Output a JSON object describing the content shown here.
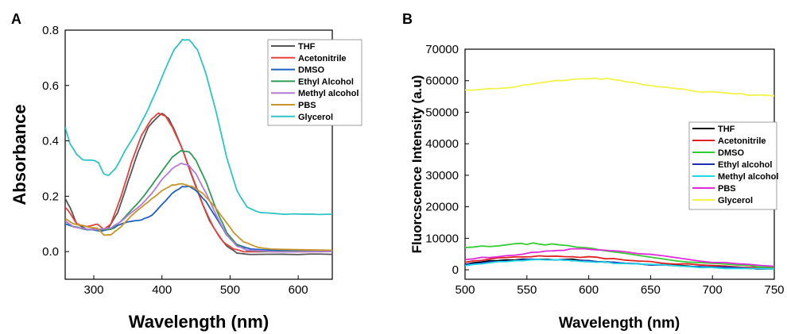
{
  "chart_data": [
    {
      "panel": "A",
      "type": "line",
      "xlabel": "Wavelength (nm)",
      "ylabel": "Absorbance",
      "xlim": [
        258,
        650
      ],
      "ylim": [
        -0.1,
        0.8
      ],
      "xticks": [
        300,
        400,
        500,
        600
      ],
      "yticks": [
        0.0,
        0.2,
        0.4,
        0.6,
        0.8
      ],
      "legend_position": "top-right",
      "series": [
        {
          "name": "THF",
          "color": "#555555",
          "points": [
            [
              258,
              0.19
            ],
            [
              265,
              0.16
            ],
            [
              275,
              0.1
            ],
            [
              290,
              0.08
            ],
            [
              305,
              0.08
            ],
            [
              320,
              0.08
            ],
            [
              335,
              0.14
            ],
            [
              350,
              0.25
            ],
            [
              365,
              0.36
            ],
            [
              380,
              0.45
            ],
            [
              395,
              0.49
            ],
            [
              400,
              0.5
            ],
            [
              410,
              0.48
            ],
            [
              420,
              0.43
            ],
            [
              430,
              0.37
            ],
            [
              440,
              0.3
            ],
            [
              455,
              0.2
            ],
            [
              470,
              0.11
            ],
            [
              485,
              0.05
            ],
            [
              495,
              0.02
            ],
            [
              510,
              -0.005
            ],
            [
              530,
              -0.01
            ],
            [
              600,
              -0.01
            ],
            [
              650,
              -0.01
            ]
          ]
        },
        {
          "name": "Acetonitrile",
          "color": "#e8413b",
          "points": [
            [
              258,
              0.16
            ],
            [
              265,
              0.14
            ],
            [
              275,
              0.1
            ],
            [
              290,
              0.09
            ],
            [
              305,
              0.1
            ],
            [
              315,
              0.08
            ],
            [
              325,
              0.1
            ],
            [
              340,
              0.2
            ],
            [
              355,
              0.32
            ],
            [
              370,
              0.42
            ],
            [
              385,
              0.48
            ],
            [
              395,
              0.5
            ],
            [
              405,
              0.49
            ],
            [
              415,
              0.45
            ],
            [
              430,
              0.37
            ],
            [
              445,
              0.27
            ],
            [
              460,
              0.17
            ],
            [
              475,
              0.09
            ],
            [
              490,
              0.035
            ],
            [
              505,
              0.01
            ],
            [
              520,
              0.0
            ],
            [
              650,
              0.0
            ]
          ]
        },
        {
          "name": "DMSO",
          "color": "#1e5fc4",
          "points": [
            [
              258,
              0.1
            ],
            [
              270,
              0.09
            ],
            [
              290,
              0.08
            ],
            [
              310,
              0.075
            ],
            [
              325,
              0.08
            ],
            [
              340,
              0.1
            ],
            [
              355,
              0.11
            ],
            [
              370,
              0.115
            ],
            [
              385,
              0.13
            ],
            [
              400,
              0.17
            ],
            [
              415,
              0.21
            ],
            [
              430,
              0.235
            ],
            [
              440,
              0.235
            ],
            [
              450,
              0.22
            ],
            [
              465,
              0.18
            ],
            [
              480,
              0.12
            ],
            [
              495,
              0.06
            ],
            [
              510,
              0.025
            ],
            [
              530,
              0.01
            ],
            [
              560,
              0.005
            ],
            [
              650,
              0.005
            ]
          ]
        },
        {
          "name": "Ethyl Alcohol",
          "color": "#2e9c54",
          "points": [
            [
              258,
              0.11
            ],
            [
              270,
              0.09
            ],
            [
              290,
              0.08
            ],
            [
              310,
              0.08
            ],
            [
              325,
              0.08
            ],
            [
              340,
              0.11
            ],
            [
              355,
              0.15
            ],
            [
              370,
              0.19
            ],
            [
              385,
              0.24
            ],
            [
              400,
              0.29
            ],
            [
              415,
              0.34
            ],
            [
              428,
              0.365
            ],
            [
              440,
              0.36
            ],
            [
              450,
              0.33
            ],
            [
              465,
              0.25
            ],
            [
              480,
              0.15
            ],
            [
              495,
              0.07
            ],
            [
              510,
              0.025
            ],
            [
              525,
              0.005
            ],
            [
              560,
              0.0
            ],
            [
              650,
              0.0
            ]
          ]
        },
        {
          "name": "Methyl alcohol",
          "color": "#b37ad8",
          "points": [
            [
              258,
              0.11
            ],
            [
              270,
              0.09
            ],
            [
              290,
              0.08
            ],
            [
              310,
              0.08
            ],
            [
              325,
              0.085
            ],
            [
              340,
              0.11
            ],
            [
              355,
              0.14
            ],
            [
              370,
              0.17
            ],
            [
              385,
              0.21
            ],
            [
              400,
              0.26
            ],
            [
              415,
              0.3
            ],
            [
              428,
              0.32
            ],
            [
              440,
              0.31
            ],
            [
              450,
              0.28
            ],
            [
              465,
              0.21
            ],
            [
              480,
              0.13
            ],
            [
              495,
              0.06
            ],
            [
              510,
              0.02
            ],
            [
              525,
              0.005
            ],
            [
              560,
              0.0
            ],
            [
              650,
              0.0
            ]
          ]
        },
        {
          "name": "PBS",
          "color": "#c8962a",
          "points": [
            [
              258,
              0.12
            ],
            [
              270,
              0.1
            ],
            [
              290,
              0.09
            ],
            [
              305,
              0.085
            ],
            [
              315,
              0.06
            ],
            [
              325,
              0.06
            ],
            [
              340,
              0.09
            ],
            [
              355,
              0.13
            ],
            [
              370,
              0.16
            ],
            [
              385,
              0.19
            ],
            [
              400,
              0.22
            ],
            [
              415,
              0.24
            ],
            [
              430,
              0.245
            ],
            [
              445,
              0.235
            ],
            [
              460,
              0.21
            ],
            [
              475,
              0.17
            ],
            [
              490,
              0.12
            ],
            [
              505,
              0.07
            ],
            [
              520,
              0.035
            ],
            [
              540,
              0.015
            ],
            [
              570,
              0.008
            ],
            [
              650,
              0.005
            ]
          ]
        },
        {
          "name": "Glycerol",
          "color": "#2ec4c6",
          "points": [
            [
              258,
              0.45
            ],
            [
              265,
              0.39
            ],
            [
              275,
              0.35
            ],
            [
              285,
              0.33
            ],
            [
              300,
              0.33
            ],
            [
              307,
              0.32
            ],
            [
              315,
              0.28
            ],
            [
              322,
              0.275
            ],
            [
              332,
              0.3
            ],
            [
              345,
              0.36
            ],
            [
              360,
              0.42
            ],
            [
              375,
              0.49
            ],
            [
              390,
              0.57
            ],
            [
              405,
              0.66
            ],
            [
              418,
              0.73
            ],
            [
              430,
              0.765
            ],
            [
              440,
              0.765
            ],
            [
              452,
              0.73
            ],
            [
              465,
              0.64
            ],
            [
              480,
              0.5
            ],
            [
              495,
              0.34
            ],
            [
              510,
              0.22
            ],
            [
              525,
              0.16
            ],
            [
              545,
              0.14
            ],
            [
              580,
              0.135
            ],
            [
              620,
              0.135
            ],
            [
              650,
              0.135
            ]
          ]
        }
      ]
    },
    {
      "panel": "B",
      "type": "line",
      "xlabel": "Wavelength (nm)",
      "ylabel": "Fluorcscence Intensity (a.u)",
      "xlim": [
        500,
        750
      ],
      "ylim": [
        -3000,
        70000
      ],
      "xticks": [
        500,
        550,
        600,
        650,
        700,
        750
      ],
      "yticks": [
        0,
        10000,
        20000,
        30000,
        40000,
        50000,
        60000,
        70000
      ],
      "legend_position": "middle-right",
      "series": [
        {
          "name": "THF",
          "color": "#000000",
          "points": [
            [
              500,
              1800
            ],
            [
              520,
              2700
            ],
            [
              540,
              3300
            ],
            [
              560,
              3500
            ],
            [
              580,
              3300
            ],
            [
              600,
              2900
            ],
            [
              620,
              2300
            ],
            [
              650,
              1700
            ],
            [
              680,
              1100
            ],
            [
              710,
              700
            ],
            [
              750,
              400
            ]
          ]
        },
        {
          "name": "Acetonitrile",
          "color": "#e02020",
          "points": [
            [
              500,
              2400
            ],
            [
              520,
              3400
            ],
            [
              540,
              4100
            ],
            [
              560,
              4400
            ],
            [
              580,
              4300
            ],
            [
              600,
              4000
            ],
            [
              620,
              3400
            ],
            [
              650,
              2500
            ],
            [
              680,
              1700
            ],
            [
              710,
              1100
            ],
            [
              750,
              600
            ]
          ]
        },
        {
          "name": "DMSO",
          "color": "#33cc33",
          "points": [
            [
              500,
              7000
            ],
            [
              520,
              7500
            ],
            [
              540,
              8100
            ],
            [
              555,
              8300
            ],
            [
              570,
              8000
            ],
            [
              590,
              7300
            ],
            [
              610,
              6300
            ],
            [
              640,
              4600
            ],
            [
              670,
              3000
            ],
            [
              700,
              1900
            ],
            [
              730,
              1200
            ],
            [
              750,
              800
            ]
          ]
        },
        {
          "name": "Ethyl alcohol",
          "color": "#1a2fb0",
          "points": [
            [
              500,
              1600
            ],
            [
              520,
              2400
            ],
            [
              540,
              3000
            ],
            [
              560,
              3300
            ],
            [
              580,
              3100
            ],
            [
              600,
              2800
            ],
            [
              620,
              2300
            ],
            [
              650,
              1700
            ],
            [
              680,
              1100
            ],
            [
              710,
              700
            ],
            [
              750,
              300
            ]
          ]
        },
        {
          "name": "Methyl alcohol",
          "color": "#22d8e8",
          "points": [
            [
              500,
              1500
            ],
            [
              520,
              2200
            ],
            [
              540,
              2800
            ],
            [
              560,
              3100
            ],
            [
              580,
              3000
            ],
            [
              600,
              2700
            ],
            [
              620,
              2200
            ],
            [
              650,
              1600
            ],
            [
              680,
              1000
            ],
            [
              710,
              600
            ],
            [
              750,
              300
            ]
          ]
        },
        {
          "name": "PBS",
          "color": "#e02ad8",
          "points": [
            [
              500,
              3300
            ],
            [
              520,
              4000
            ],
            [
              540,
              4800
            ],
            [
              560,
              5700
            ],
            [
              575,
              6200
            ],
            [
              590,
              6600
            ],
            [
              610,
              6300
            ],
            [
              630,
              5700
            ],
            [
              660,
              4300
            ],
            [
              690,
              2900
            ],
            [
              720,
              1800
            ],
            [
              750,
              1100
            ]
          ]
        },
        {
          "name": "Glycerol",
          "color": "#f3f34a",
          "points": [
            [
              500,
              57000
            ],
            [
              520,
              57300
            ],
            [
              540,
              58000
            ],
            [
              560,
              59200
            ],
            [
              580,
              60200
            ],
            [
              600,
              60800
            ],
            [
              615,
              60600
            ],
            [
              630,
              59800
            ],
            [
              650,
              58600
            ],
            [
              670,
              57600
            ],
            [
              690,
              56600
            ],
            [
              710,
              56000
            ],
            [
              730,
              55500
            ],
            [
              750,
              55200
            ]
          ]
        }
      ]
    }
  ]
}
